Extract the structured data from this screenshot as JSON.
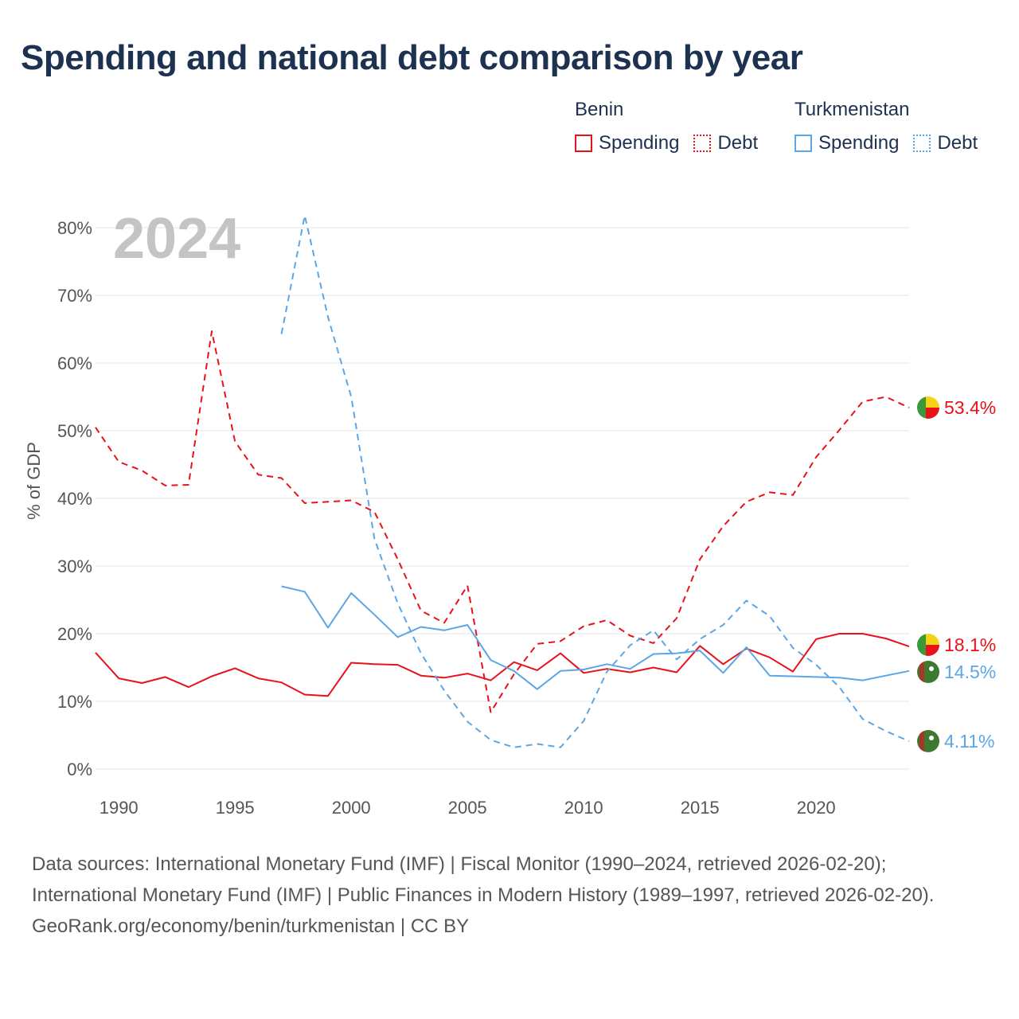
{
  "title": "Spending and national debt comparison by year",
  "legend": [
    {
      "country": "Benin",
      "color": "#e8121a",
      "items": [
        "Spending",
        "Debt"
      ]
    },
    {
      "country": "Turkmenistan",
      "color": "#5ba6e6",
      "items": [
        "Spending",
        "Debt"
      ]
    }
  ],
  "footer": {
    "sources": "Data sources: International Monetary Fund (IMF) | Fiscal Monitor (1990–2024, retrieved 2026-02-20); International Monetary Fund (IMF) | Public Finances in Modern History (1989–1997, retrieved 2026-02-20).",
    "credit": "GeoRank.org/economy/benin/turkmenistan | CC BY"
  },
  "chart_data": {
    "type": "line",
    "year_label": "2024",
    "ylabel": "% of GDP",
    "xlabel": "",
    "xlim": [
      1989,
      2024
    ],
    "ylim": [
      0,
      82
    ],
    "x_ticks": [
      1990,
      1995,
      2000,
      2005,
      2010,
      2015,
      2020
    ],
    "y_ticks": [
      0,
      10,
      20,
      30,
      40,
      50,
      60,
      70,
      80
    ],
    "y_tick_labels": [
      "0%",
      "10%",
      "20%",
      "30%",
      "40%",
      "50%",
      "60%",
      "70%",
      "80%"
    ],
    "series": [
      {
        "name": "Benin Debt",
        "country": "Benin",
        "metric": "Debt",
        "color": "#e8121a",
        "style": "dashed",
        "x": [
          1989,
          1990,
          1991,
          1992,
          1993,
          1994,
          1995,
          1996,
          1997,
          1998,
          1999,
          2000,
          2001,
          2002,
          2003,
          2004,
          2005,
          2006,
          2007,
          2008,
          2009,
          2010,
          2011,
          2012,
          2013,
          2014,
          2015,
          2016,
          2017,
          2018,
          2019,
          2020,
          2021,
          2022,
          2023,
          2024
        ],
        "values": [
          50.5,
          45.4,
          44.1,
          41.9,
          42.0,
          64.7,
          48.4,
          43.5,
          43.0,
          39.3,
          39.5,
          39.7,
          38.0,
          31.0,
          23.4,
          21.6,
          27.1,
          8.4,
          14.0,
          18.5,
          18.9,
          21.1,
          22.0,
          19.7,
          18.6,
          22.3,
          31.0,
          35.9,
          39.5,
          40.9,
          40.5,
          46.1,
          50.1,
          54.3,
          55.0,
          53.4
        ],
        "end_label": "53.4%"
      },
      {
        "name": "Benin Spending",
        "country": "Benin",
        "metric": "Spending",
        "color": "#e8121a",
        "style": "solid",
        "x": [
          1989,
          1990,
          1991,
          1992,
          1993,
          1994,
          1995,
          1996,
          1997,
          1998,
          1999,
          2000,
          2001,
          2002,
          2003,
          2004,
          2005,
          2006,
          2007,
          2008,
          2009,
          2010,
          2011,
          2012,
          2013,
          2014,
          2015,
          2016,
          2017,
          2018,
          2019,
          2020,
          2021,
          2022,
          2023,
          2024
        ],
        "values": [
          17.2,
          13.4,
          12.7,
          13.6,
          12.1,
          13.7,
          14.9,
          13.4,
          12.8,
          11.0,
          10.8,
          15.7,
          15.5,
          15.4,
          13.8,
          13.5,
          14.1,
          13.1,
          15.8,
          14.6,
          17.1,
          14.2,
          14.8,
          14.3,
          15.0,
          14.3,
          18.2,
          15.5,
          17.8,
          16.5,
          14.4,
          19.2,
          20.0,
          20.0,
          19.3,
          18.1
        ],
        "end_label": "18.1%"
      },
      {
        "name": "Turkmenistan Spending",
        "country": "Turkmenistan",
        "metric": "Spending",
        "color": "#5ba6e6",
        "style": "solid",
        "x": [
          1997,
          1998,
          1999,
          2000,
          2001,
          2002,
          2003,
          2004,
          2005,
          2006,
          2007,
          2008,
          2009,
          2010,
          2011,
          2012,
          2013,
          2014,
          2015,
          2016,
          2017,
          2018,
          2019,
          2020,
          2021,
          2022,
          2023,
          2024
        ],
        "values": [
          27.0,
          26.2,
          20.9,
          26.0,
          22.8,
          19.5,
          21.0,
          20.5,
          21.3,
          16.1,
          14.5,
          11.8,
          14.5,
          14.7,
          15.5,
          14.8,
          17.0,
          17.1,
          17.5,
          14.2,
          18.0,
          13.8,
          13.7,
          13.6,
          13.5,
          13.1,
          13.8,
          14.5
        ],
        "end_label": "14.5%"
      },
      {
        "name": "Turkmenistan Debt",
        "country": "Turkmenistan",
        "metric": "Debt",
        "color": "#5ba6e6",
        "style": "dashed",
        "x": [
          1997,
          1998,
          1999,
          2000,
          2001,
          2002,
          2003,
          2004,
          2005,
          2006,
          2007,
          2008,
          2009,
          2010,
          2011,
          2012,
          2013,
          2014,
          2015,
          2016,
          2017,
          2018,
          2019,
          2020,
          2021,
          2022,
          2023,
          2024
        ],
        "values": [
          64.3,
          81.8,
          66.8,
          55.0,
          34.0,
          24.5,
          17.1,
          11.6,
          7.0,
          4.3,
          3.2,
          3.7,
          3.2,
          7.1,
          14.4,
          18.3,
          20.5,
          16.2,
          19.2,
          21.3,
          24.9,
          22.6,
          17.9,
          15.4,
          12.1,
          7.4,
          5.6,
          4.11
        ],
        "end_label": "4.11%"
      }
    ]
  }
}
